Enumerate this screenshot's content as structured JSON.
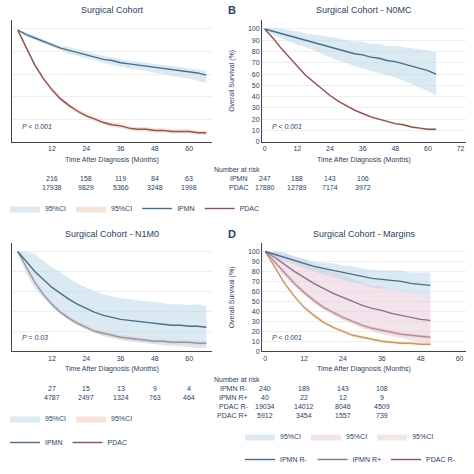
{
  "chart_data": [
    {
      "type": "line",
      "title": "Surgical Cohort",
      "xlabel": "Time After Diagnosis (Months)",
      "pvalue": "P < 0.001",
      "x": [
        0,
        3,
        6,
        9,
        12,
        15,
        18,
        21,
        24,
        27,
        30,
        33,
        36,
        39,
        42,
        45,
        48,
        51,
        54,
        57,
        60,
        63,
        66
      ],
      "xlim": [
        -2,
        68
      ],
      "xticks": [
        12,
        24,
        36,
        48,
        60
      ],
      "ylim": [
        0,
        108
      ],
      "yticks": [
        0,
        20,
        40,
        60,
        80,
        100
      ],
      "grid": true,
      "tick_labels": "x",
      "legend": "bottom",
      "series": [
        {
          "name": "IPMN",
          "color": "#4a6f8a",
          "values": [
            99,
            95,
            92,
            89,
            86,
            83,
            81,
            79,
            77,
            75,
            73,
            72,
            70,
            69,
            68,
            67,
            66,
            65,
            64,
            63,
            62,
            61,
            59
          ],
          "ci_low": [
            99,
            93,
            90,
            87,
            84,
            81,
            78,
            76,
            74,
            72,
            70,
            68,
            67,
            65,
            64,
            63,
            61,
            60,
            58,
            57,
            56,
            54,
            52
          ],
          "ci_high": [
            100,
            97,
            94,
            91,
            88,
            85,
            84,
            82,
            80,
            78,
            76,
            75,
            73,
            72,
            71,
            70,
            69,
            68,
            67,
            66,
            65,
            64,
            63
          ],
          "ci_name": "95%CI",
          "ci_color": "#b8d4e8"
        },
        {
          "name": "PDAC",
          "color": "#8a5555",
          "values": [
            99,
            83,
            68,
            56,
            46,
            38,
            32,
            27,
            23,
            20,
            17,
            15,
            14,
            12,
            11,
            11,
            10,
            10,
            9,
            9,
            9,
            8,
            8
          ],
          "ci_low": [
            98,
            81,
            66,
            54,
            44,
            36,
            30,
            25,
            21,
            18,
            15,
            13,
            12,
            10,
            9,
            9,
            8,
            8,
            7,
            7,
            7,
            6,
            6
          ],
          "ci_high": [
            100,
            85,
            70,
            58,
            48,
            40,
            34,
            29,
            25,
            22,
            19,
            17,
            16,
            14,
            13,
            13,
            12,
            12,
            11,
            11,
            11,
            10,
            10
          ],
          "ci_name": "95%CI",
          "ci_color": "#f0c8b0"
        }
      ],
      "at_risk": {
        "x": [
          0,
          12,
          24,
          36,
          48,
          60
        ],
        "rows": [
          {
            "values": [
              null,
              216,
              158,
              119,
              84,
              63
            ]
          },
          {
            "values": [
              null,
              17938,
              9829,
              5366,
              3248,
              1998
            ]
          }
        ]
      }
    },
    {
      "type": "line",
      "title": "Surgical Cohort - N0MC",
      "panel_label": "B",
      "xlabel": "Time After Diagnosis (Months)",
      "ylabel": "Overall Survival (%)",
      "pvalue": "P < 0.001",
      "x": [
        0,
        3,
        6,
        9,
        12,
        15,
        18,
        21,
        24,
        27,
        30,
        33,
        36,
        39,
        42,
        45,
        48,
        51,
        54,
        57,
        60,
        63
      ],
      "xlim": [
        -1,
        74
      ],
      "xticks": [
        0,
        12,
        24,
        36,
        48,
        60,
        72
      ],
      "ylim": [
        0,
        108
      ],
      "yticks": [
        0,
        10,
        20,
        30,
        40,
        50,
        60,
        70,
        80,
        90,
        100
      ],
      "grid": true,
      "series": [
        {
          "color": "#4a6f8a",
          "values": [
            100,
            98,
            96,
            94,
            92,
            90,
            88,
            86,
            84,
            82,
            80,
            78,
            77,
            75,
            74,
            72,
            71,
            69,
            67,
            65,
            63,
            60
          ],
          "ci_low": [
            100,
            95,
            92,
            89,
            86,
            84,
            81,
            78,
            75,
            72,
            70,
            67,
            65,
            63,
            61,
            59,
            57,
            54,
            51,
            48,
            45,
            41
          ],
          "ci_high": [
            100,
            101,
            100,
            99,
            98,
            96,
            95,
            94,
            93,
            92,
            90,
            89,
            89,
            87,
            87,
            85,
            85,
            84,
            83,
            82,
            81,
            79
          ],
          "ci_color": "#b8d4e8"
        },
        {
          "color": "#8a5555",
          "values": [
            100,
            92,
            83,
            75,
            67,
            59,
            53,
            47,
            41,
            36,
            32,
            28,
            25,
            22,
            20,
            18,
            16,
            15,
            13,
            12,
            11,
            11
          ],
          "ci_low": [
            99,
            91,
            82,
            74,
            66,
            58,
            52,
            46,
            40,
            35,
            31,
            27,
            24,
            21,
            19,
            17,
            15,
            14,
            12,
            11,
            10,
            10
          ],
          "ci_high": [
            101,
            93,
            84,
            76,
            68,
            60,
            54,
            48,
            42,
            37,
            33,
            29,
            26,
            23,
            21,
            19,
            17,
            16,
            14,
            13,
            12,
            12
          ],
          "ci_color": "#f0c8b0"
        }
      ],
      "at_risk": {
        "title": "Number at risk",
        "x": [
          0,
          12,
          24,
          36,
          48
        ],
        "rows": [
          {
            "label": "IPMN",
            "values": [
              247,
              188,
              143,
              106,
              null
            ]
          },
          {
            "label": "PDAC",
            "values": [
              17880,
              12789,
              7174,
              3972,
              null
            ]
          }
        ]
      }
    },
    {
      "type": "line",
      "title": "Surgical Cohort - N1M0",
      "xlabel": "Time After Diagnosis (Months)",
      "pvalue": "P = 0.03",
      "x": [
        0,
        3,
        6,
        9,
        12,
        15,
        18,
        21,
        24,
        27,
        30,
        33,
        36,
        39,
        42,
        45,
        48,
        51,
        54,
        57,
        60,
        63,
        66
      ],
      "xlim": [
        -2,
        68
      ],
      "xticks": [
        12,
        24,
        36,
        48,
        60
      ],
      "ylim": [
        0,
        108
      ],
      "yticks": [
        0,
        20,
        40,
        60,
        80,
        100
      ],
      "grid": true,
      "tick_labels": "x",
      "legend": "bottom",
      "series": [
        {
          "name": "IPMN",
          "color": "#4a6f8a",
          "values": [
            100,
            90,
            80,
            72,
            64,
            58,
            52,
            47,
            43,
            39,
            36,
            34,
            32,
            31,
            30,
            29,
            28,
            27,
            26,
            26,
            25,
            25,
            24
          ],
          "ci_low": [
            100,
            77,
            63,
            53,
            44,
            37,
            31,
            26,
            22,
            18,
            15,
            13,
            11,
            10,
            9,
            8,
            7,
            6,
            5,
            5,
            4,
            3,
            3
          ],
          "ci_high": [
            100,
            100,
            97,
            91,
            84,
            79,
            73,
            68,
            64,
            60,
            57,
            55,
            53,
            52,
            51,
            50,
            49,
            48,
            47,
            47,
            46,
            47,
            45
          ],
          "ci_name": "95%CI",
          "ci_color": "#b8d4e8"
        },
        {
          "name": "PDAC",
          "color": "#8a5555",
          "values": [
            100,
            84,
            69,
            57,
            47,
            39,
            33,
            28,
            24,
            20,
            18,
            16,
            14,
            13,
            12,
            11,
            10,
            10,
            9,
            9,
            9,
            8,
            8
          ],
          "ci_low": [
            99,
            82,
            67,
            55,
            45,
            37,
            31,
            26,
            22,
            18,
            16,
            14,
            12,
            11,
            10,
            9,
            8,
            8,
            7,
            7,
            7,
            6,
            6
          ],
          "ci_high": [
            101,
            86,
            71,
            59,
            49,
            41,
            35,
            30,
            26,
            22,
            20,
            18,
            16,
            15,
            14,
            13,
            12,
            12,
            11,
            11,
            11,
            10,
            10
          ],
          "ci_name": "95%CI",
          "ci_color": "#f0c8b0"
        }
      ],
      "at_risk": {
        "x": [
          0,
          12,
          24,
          36,
          48,
          60
        ],
        "rows": [
          {
            "values": [
              null,
              27,
              15,
              13,
              9,
              4
            ]
          },
          {
            "values": [
              null,
              4787,
              2497,
              1324,
              763,
              464
            ]
          }
        ]
      }
    },
    {
      "type": "line",
      "title": "Surgical Cohort - Margins",
      "panel_label": "D",
      "xlabel": "Time After Diagnosis (Months)",
      "ylabel": "Overall Survival (%)",
      "pvalue": "P < 0.001",
      "x": [
        0,
        3,
        6,
        9,
        12,
        15,
        18,
        21,
        24,
        27,
        30,
        33,
        36,
        39,
        42,
        45,
        48,
        51
      ],
      "xlim": [
        -1,
        62
      ],
      "xticks": [
        0,
        12,
        24,
        36,
        48,
        60
      ],
      "ylim": [
        0,
        108
      ],
      "yticks": [
        0,
        10,
        20,
        30,
        40,
        50,
        60,
        70,
        80,
        90,
        100
      ],
      "grid": true,
      "legend": "bottom",
      "series": [
        {
          "name": "IPMN R-",
          "color": "#4a6f8a",
          "values": [
            100,
            97,
            94,
            91,
            88,
            85,
            83,
            81,
            79,
            77,
            75,
            73,
            72,
            71,
            70,
            68,
            67,
            66
          ],
          "ci_low": [
            100,
            94,
            90,
            87,
            83,
            80,
            77,
            74,
            72,
            69,
            67,
            64,
            63,
            61,
            59,
            57,
            55,
            53
          ],
          "ci_high": [
            100,
            100,
            98,
            95,
            93,
            90,
            89,
            88,
            86,
            85,
            83,
            82,
            81,
            81,
            81,
            79,
            79,
            79
          ],
          "ci_name": "95%CI",
          "ci_color": "#b8d4e8"
        },
        {
          "name": "IPMN R+",
          "color": "#8b6f8a",
          "values": [
            100,
            94,
            87,
            80,
            74,
            68,
            63,
            58,
            54,
            50,
            46,
            43,
            41,
            38,
            36,
            34,
            32,
            31
          ],
          "ci_low": [
            100,
            86,
            75,
            65,
            56,
            48,
            42,
            36,
            31,
            27,
            23,
            20,
            17,
            15,
            13,
            11,
            9,
            8
          ],
          "ci_high": [
            100,
            100,
            99,
            95,
            92,
            88,
            84,
            80,
            77,
            73,
            69,
            66,
            65,
            61,
            59,
            57,
            55,
            54
          ],
          "ci_name": "95%CI",
          "ci_color": "#e8c8d8"
        },
        {
          "name": "PDAC R-",
          "color": "#8a5555",
          "values": [
            100,
            89,
            78,
            68,
            59,
            51,
            44,
            39,
            34,
            30,
            26,
            23,
            21,
            19,
            17,
            16,
            15,
            14
          ],
          "ci_low": [
            99,
            87,
            76,
            66,
            57,
            49,
            42,
            37,
            32,
            28,
            24,
            21,
            19,
            17,
            15,
            14,
            13,
            12
          ],
          "ci_high": [
            101,
            91,
            80,
            70,
            61,
            53,
            46,
            41,
            36,
            32,
            28,
            25,
            23,
            21,
            19,
            18,
            17,
            16
          ],
          "ci_name": "95%CI",
          "ci_color": "#e8d0c8"
        },
        {
          "color": "#c4956a",
          "values": [
            100,
            84,
            68,
            55,
            44,
            36,
            29,
            24,
            20,
            16,
            14,
            12,
            10,
            9,
            8,
            8,
            7,
            7
          ],
          "ci_low": [
            99,
            82,
            66,
            53,
            42,
            34,
            27,
            22,
            18,
            14,
            12,
            10,
            8,
            7,
            6,
            6,
            5,
            5
          ],
          "ci_high": [
            101,
            86,
            70,
            57,
            46,
            38,
            31,
            26,
            22,
            18,
            16,
            14,
            12,
            11,
            10,
            10,
            9,
            9
          ],
          "ci_color": "#f8e0c0"
        }
      ],
      "at_risk": {
        "title": "Number at risk",
        "x": [
          0,
          12,
          24,
          36
        ],
        "rows": [
          {
            "label": "IPMN R-",
            "values": [
              240,
              189,
              143,
              108
            ]
          },
          {
            "label": "IPMN R+",
            "values": [
              40,
              22,
              12,
              9
            ]
          },
          {
            "label": "PDAC R-",
            "values": [
              19034,
              14012,
              8046,
              4509
            ]
          },
          {
            "label": "PDAC R+",
            "values": [
              5912,
              3454,
              1557,
              739
            ]
          }
        ]
      }
    }
  ]
}
